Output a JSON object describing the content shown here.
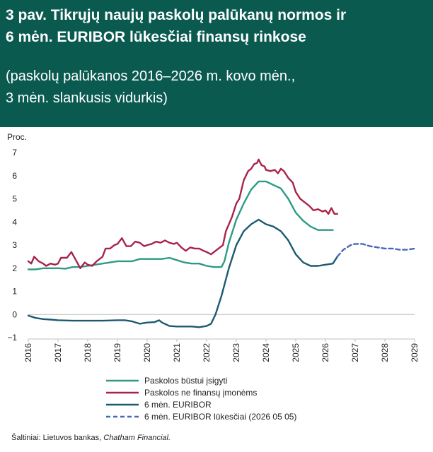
{
  "header": {
    "title_line1": "3 pav.  Tikrųjų naujų paskolų palūkanų normos ir",
    "title_line2": "6 mėn. EURIBOR lūkesčiai finansų rinkose",
    "subtitle_line1": "(paskolų palūkanos 2016–2026 m. kovo mėn.,",
    "subtitle_line2": "3 mėn. slankusis vidurkis)"
  },
  "source": {
    "prefix": "Šaltiniai: Lietuvos bankas, ",
    "italic": "Chatham Financial."
  },
  "colors": {
    "header_bg": "#0a5a50",
    "mortgage": "#2e9a86",
    "business": "#a8234a",
    "euribor": "#1b5a72",
    "forecast": "#4a66b8"
  },
  "chart_data": {
    "type": "line",
    "ylabel": "Proc.",
    "ylim": [
      -1,
      7
    ],
    "yticks": [
      -1,
      0,
      1,
      2,
      3,
      4,
      5,
      6,
      7
    ],
    "xlim": [
      2016,
      2029
    ],
    "xticks": [
      "2016",
      "2017",
      "2018",
      "2019",
      "2020",
      "2021",
      "2022",
      "2023",
      "2024",
      "2025",
      "2026",
      "2027",
      "2028",
      "2029"
    ],
    "grid": false,
    "legend_position": "bottom",
    "series": [
      {
        "name": "Paskolos būstui įsigyti",
        "style": "solid",
        "points": [
          [
            2016.0,
            1.95
          ],
          [
            2016.25,
            1.95
          ],
          [
            2016.5,
            2.0
          ],
          [
            2016.75,
            2.0
          ],
          [
            2017.0,
            2.0
          ],
          [
            2017.25,
            1.98
          ],
          [
            2017.5,
            2.05
          ],
          [
            2017.75,
            2.05
          ],
          [
            2018.0,
            2.1
          ],
          [
            2018.25,
            2.15
          ],
          [
            2018.5,
            2.2
          ],
          [
            2018.75,
            2.25
          ],
          [
            2019.0,
            2.3
          ],
          [
            2019.25,
            2.3
          ],
          [
            2019.5,
            2.3
          ],
          [
            2019.75,
            2.4
          ],
          [
            2020.0,
            2.4
          ],
          [
            2020.25,
            2.4
          ],
          [
            2020.5,
            2.4
          ],
          [
            2020.75,
            2.45
          ],
          [
            2021.0,
            2.35
          ],
          [
            2021.25,
            2.25
          ],
          [
            2021.5,
            2.2
          ],
          [
            2021.75,
            2.2
          ],
          [
            2022.0,
            2.1
          ],
          [
            2022.25,
            2.05
          ],
          [
            2022.5,
            2.05
          ],
          [
            2022.6,
            2.3
          ],
          [
            2022.75,
            3.1
          ],
          [
            2023.0,
            4.1
          ],
          [
            2023.25,
            4.8
          ],
          [
            2023.5,
            5.4
          ],
          [
            2023.75,
            5.75
          ],
          [
            2024.0,
            5.75
          ],
          [
            2024.25,
            5.6
          ],
          [
            2024.5,
            5.45
          ],
          [
            2024.75,
            5.0
          ],
          [
            2025.0,
            4.4
          ],
          [
            2025.25,
            4.05
          ],
          [
            2025.5,
            3.8
          ],
          [
            2025.75,
            3.65
          ],
          [
            2026.0,
            3.65
          ],
          [
            2026.25,
            3.65
          ]
        ]
      },
      {
        "name": "Paskolos ne finansų įmonėms",
        "style": "solid",
        "points": [
          [
            2016.0,
            2.3
          ],
          [
            2016.1,
            2.2
          ],
          [
            2016.2,
            2.5
          ],
          [
            2016.35,
            2.3
          ],
          [
            2016.5,
            2.2
          ],
          [
            2016.6,
            2.1
          ],
          [
            2016.75,
            2.2
          ],
          [
            2016.9,
            2.15
          ],
          [
            2017.0,
            2.2
          ],
          [
            2017.1,
            2.45
          ],
          [
            2017.3,
            2.45
          ],
          [
            2017.45,
            2.7
          ],
          [
            2017.6,
            2.35
          ],
          [
            2017.75,
            2.0
          ],
          [
            2017.9,
            2.25
          ],
          [
            2018.0,
            2.15
          ],
          [
            2018.15,
            2.1
          ],
          [
            2018.3,
            2.3
          ],
          [
            2018.5,
            2.5
          ],
          [
            2018.6,
            2.85
          ],
          [
            2018.75,
            2.85
          ],
          [
            2018.9,
            3.0
          ],
          [
            2019.0,
            3.05
          ],
          [
            2019.15,
            3.3
          ],
          [
            2019.3,
            2.95
          ],
          [
            2019.45,
            2.95
          ],
          [
            2019.6,
            3.15
          ],
          [
            2019.75,
            3.1
          ],
          [
            2019.9,
            2.95
          ],
          [
            2020.0,
            3.0
          ],
          [
            2020.15,
            3.05
          ],
          [
            2020.3,
            3.15
          ],
          [
            2020.45,
            3.1
          ],
          [
            2020.6,
            3.2
          ],
          [
            2020.75,
            3.1
          ],
          [
            2020.9,
            3.05
          ],
          [
            2021.0,
            3.1
          ],
          [
            2021.15,
            2.9
          ],
          [
            2021.3,
            2.75
          ],
          [
            2021.45,
            2.9
          ],
          [
            2021.6,
            2.85
          ],
          [
            2021.75,
            2.85
          ],
          [
            2021.9,
            2.75
          ],
          [
            2022.0,
            2.7
          ],
          [
            2022.15,
            2.6
          ],
          [
            2022.3,
            2.75
          ],
          [
            2022.45,
            2.9
          ],
          [
            2022.55,
            3.0
          ],
          [
            2022.65,
            3.6
          ],
          [
            2022.85,
            4.2
          ],
          [
            2023.0,
            4.8
          ],
          [
            2023.1,
            5.0
          ],
          [
            2023.25,
            5.8
          ],
          [
            2023.4,
            6.2
          ],
          [
            2023.5,
            6.3
          ],
          [
            2023.6,
            6.5
          ],
          [
            2023.7,
            6.55
          ],
          [
            2023.75,
            6.7
          ],
          [
            2023.85,
            6.45
          ],
          [
            2023.95,
            6.4
          ],
          [
            2024.0,
            6.25
          ],
          [
            2024.15,
            6.2
          ],
          [
            2024.3,
            6.25
          ],
          [
            2024.4,
            6.1
          ],
          [
            2024.5,
            6.3
          ],
          [
            2024.6,
            6.2
          ],
          [
            2024.75,
            5.9
          ],
          [
            2024.9,
            5.7
          ],
          [
            2025.0,
            5.3
          ],
          [
            2025.15,
            5.0
          ],
          [
            2025.3,
            4.85
          ],
          [
            2025.45,
            4.7
          ],
          [
            2025.6,
            4.5
          ],
          [
            2025.75,
            4.55
          ],
          [
            2025.9,
            4.45
          ],
          [
            2026.0,
            4.5
          ],
          [
            2026.1,
            4.35
          ],
          [
            2026.2,
            4.6
          ],
          [
            2026.3,
            4.35
          ],
          [
            2026.4,
            4.35
          ]
        ]
      },
      {
        "name": "6 mėn. EURIBOR",
        "style": "solid",
        "points": [
          [
            2016.0,
            -0.05
          ],
          [
            2016.25,
            -0.15
          ],
          [
            2016.5,
            -0.2
          ],
          [
            2016.75,
            -0.22
          ],
          [
            2017.0,
            -0.25
          ],
          [
            2017.5,
            -0.27
          ],
          [
            2018.0,
            -0.27
          ],
          [
            2018.5,
            -0.27
          ],
          [
            2019.0,
            -0.25
          ],
          [
            2019.25,
            -0.25
          ],
          [
            2019.5,
            -0.3
          ],
          [
            2019.75,
            -0.4
          ],
          [
            2020.0,
            -0.35
          ],
          [
            2020.25,
            -0.33
          ],
          [
            2020.4,
            -0.25
          ],
          [
            2020.5,
            -0.35
          ],
          [
            2020.75,
            -0.5
          ],
          [
            2021.0,
            -0.52
          ],
          [
            2021.25,
            -0.52
          ],
          [
            2021.5,
            -0.52
          ],
          [
            2021.75,
            -0.55
          ],
          [
            2022.0,
            -0.5
          ],
          [
            2022.15,
            -0.4
          ],
          [
            2022.3,
            0.0
          ],
          [
            2022.5,
            0.8
          ],
          [
            2022.75,
            2.0
          ],
          [
            2023.0,
            3.0
          ],
          [
            2023.25,
            3.6
          ],
          [
            2023.5,
            3.9
          ],
          [
            2023.75,
            4.1
          ],
          [
            2024.0,
            3.9
          ],
          [
            2024.25,
            3.8
          ],
          [
            2024.5,
            3.6
          ],
          [
            2024.75,
            3.2
          ],
          [
            2025.0,
            2.6
          ],
          [
            2025.25,
            2.25
          ],
          [
            2025.5,
            2.1
          ],
          [
            2025.75,
            2.1
          ],
          [
            2026.0,
            2.15
          ],
          [
            2026.25,
            2.2
          ],
          [
            2026.4,
            2.5
          ]
        ]
      },
      {
        "name": "6 mėn. EURIBOR lūkesčiai (2026 05 05)",
        "style": "dashed",
        "points": [
          [
            2026.4,
            2.5
          ],
          [
            2026.6,
            2.8
          ],
          [
            2026.85,
            3.0
          ],
          [
            2027.0,
            3.05
          ],
          [
            2027.25,
            3.05
          ],
          [
            2027.5,
            2.95
          ],
          [
            2027.75,
            2.9
          ],
          [
            2028.0,
            2.85
          ],
          [
            2028.25,
            2.85
          ],
          [
            2028.5,
            2.8
          ],
          [
            2028.75,
            2.8
          ],
          [
            2029.0,
            2.85
          ]
        ]
      }
    ]
  }
}
